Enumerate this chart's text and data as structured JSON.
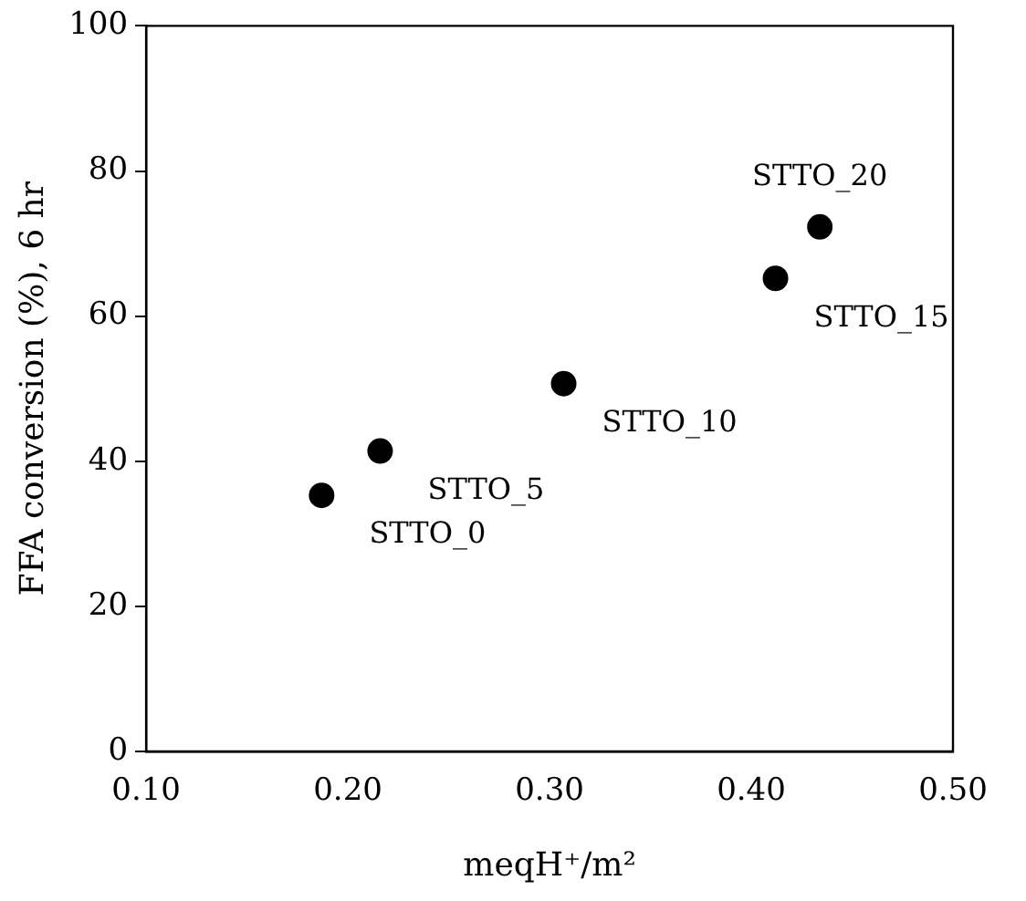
{
  "chart_data": {
    "type": "scatter",
    "xlabel": "meqH⁺/m²",
    "ylabel": "FFA conversion (%), 6 hr",
    "x": [
      0.187,
      0.216,
      0.307,
      0.412,
      0.434
    ],
    "series": [
      {
        "color": "#000000",
        "values": [
          35.3,
          41.4,
          50.7,
          65.2,
          72.3
        ]
      }
    ],
    "xlim": [
      0.1,
      0.5
    ],
    "xticks": [
      {
        "value": 0.1,
        "label": "0.10"
      },
      {
        "value": 0.2,
        "label": "0.20"
      },
      {
        "value": 0.3,
        "label": "0.30"
      },
      {
        "value": 0.4,
        "label": "0.40"
      },
      {
        "value": 0.5,
        "label": "0.50"
      }
    ],
    "ylim": [
      0,
      100
    ],
    "yticks": [
      0,
      20,
      40,
      60,
      80,
      100
    ],
    "marker": "circle",
    "annotations": [
      {
        "text": "STTO_0",
        "x": 0.187,
        "y": 35.3
      },
      {
        "text": "STTO_5",
        "x": 0.216,
        "y": 41.4
      },
      {
        "text": "STTO_10",
        "x": 0.307,
        "y": 50.7
      },
      {
        "text": "STTO_15",
        "x": 0.412,
        "y": 65.2
      },
      {
        "text": "STTO_20",
        "x": 0.434,
        "y": 72.3
      }
    ]
  }
}
